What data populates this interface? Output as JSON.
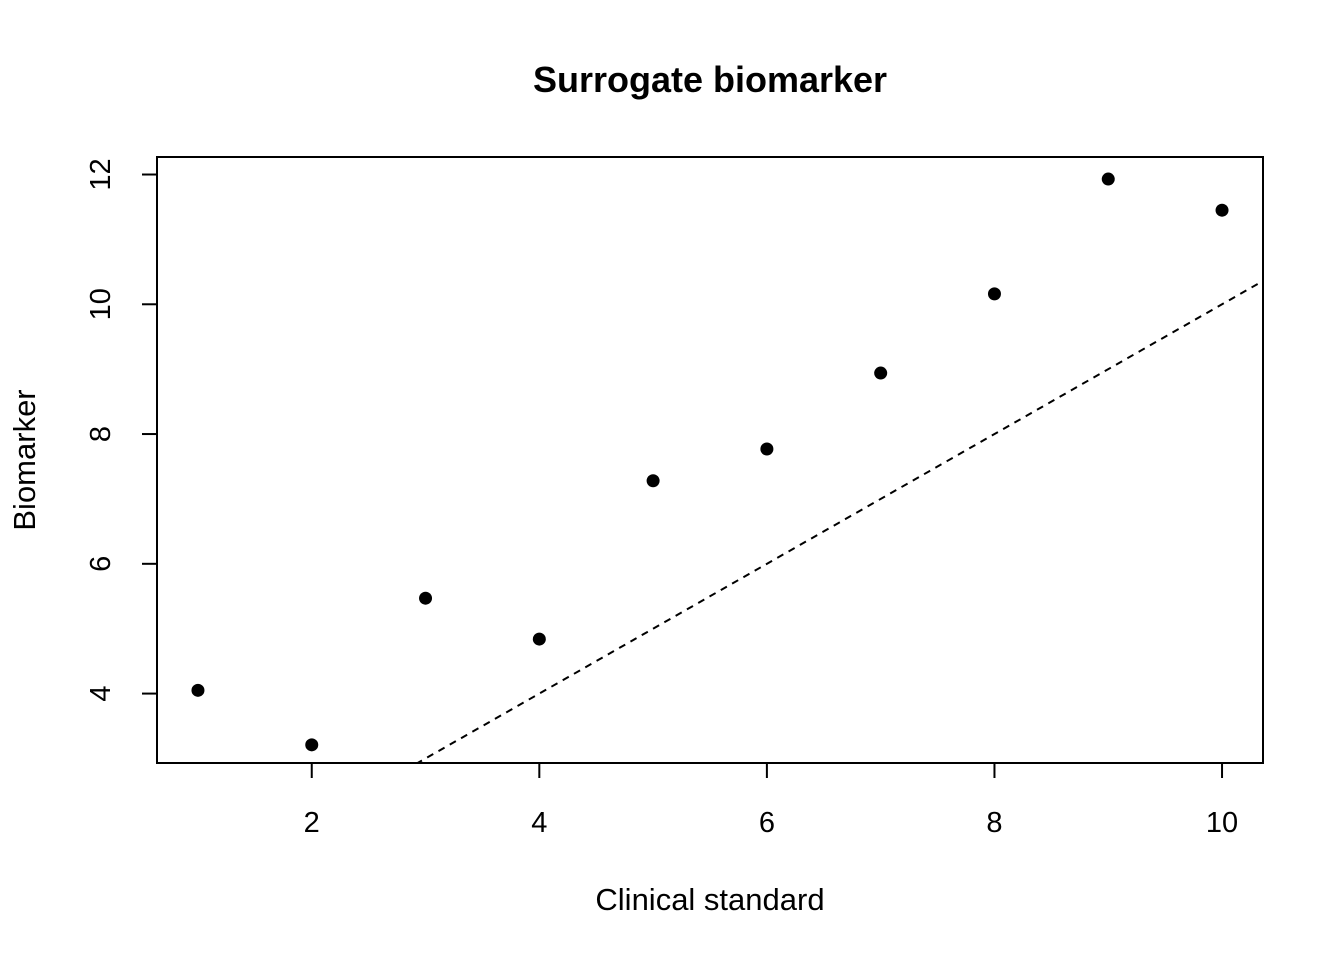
{
  "chart_data": {
    "type": "scatter",
    "title": "Surrogate biomarker",
    "xlabel": "Clinical standard",
    "ylabel": "Biomarker",
    "xlim": [
      0.64,
      10.36
    ],
    "ylim": [
      2.93,
      12.27
    ],
    "x_ticks": [
      2,
      4,
      6,
      8,
      10
    ],
    "y_ticks": [
      4,
      6,
      8,
      10,
      12
    ],
    "grid": false,
    "series": [
      {
        "x": [
          1,
          2,
          3,
          4,
          5,
          6,
          7,
          8,
          9,
          10
        ],
        "y": [
          4.05,
          3.21,
          5.47,
          4.84,
          7.28,
          7.77,
          8.94,
          10.16,
          11.93,
          11.45
        ],
        "marker": "filled-circle",
        "color": "#000000"
      }
    ],
    "reference_line": {
      "type": "identity",
      "slope": 1,
      "intercept": 0,
      "style": "dashed",
      "color": "#000000"
    }
  }
}
